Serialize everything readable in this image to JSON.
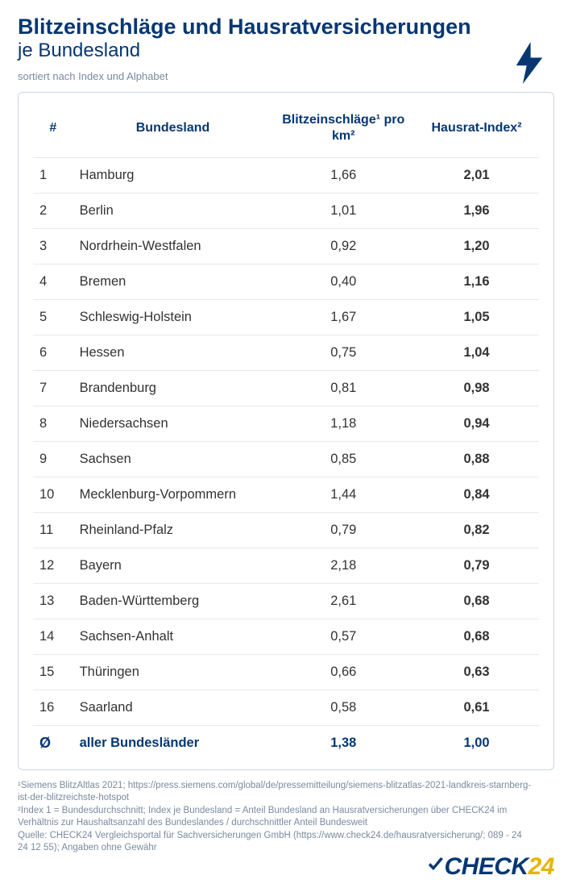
{
  "header": {
    "title": "Blitzeinschläge und Hausratversicherungen",
    "subtitle": "je Bundesland",
    "sort_note": "sortiert nach  Index und Alphabet"
  },
  "table": {
    "columns": {
      "rank": "#",
      "state": "Bundesland",
      "blitz": "Blitzeinschläge¹ pro km²",
      "index": "Hausrat-Index²"
    },
    "rows": [
      {
        "rank": "1",
        "state": "Hamburg",
        "blitz": "1,66",
        "index": "2,01"
      },
      {
        "rank": "2",
        "state": "Berlin",
        "blitz": "1,01",
        "index": "1,96"
      },
      {
        "rank": "3",
        "state": "Nordrhein-Westfalen",
        "blitz": "0,92",
        "index": "1,20"
      },
      {
        "rank": "4",
        "state": "Bremen",
        "blitz": "0,40",
        "index": "1,16"
      },
      {
        "rank": "5",
        "state": "Schleswig-Holstein",
        "blitz": "1,67",
        "index": "1,05"
      },
      {
        "rank": "6",
        "state": "Hessen",
        "blitz": "0,75",
        "index": "1,04"
      },
      {
        "rank": "7",
        "state": "Brandenburg",
        "blitz": "0,81",
        "index": "0,98"
      },
      {
        "rank": "8",
        "state": "Niedersachsen",
        "blitz": "1,18",
        "index": "0,94"
      },
      {
        "rank": "9",
        "state": "Sachsen",
        "blitz": "0,85",
        "index": "0,88"
      },
      {
        "rank": "10",
        "state": "Mecklenburg-Vorpommern",
        "blitz": "1,44",
        "index": "0,84"
      },
      {
        "rank": "11",
        "state": "Rheinland-Pfalz",
        "blitz": "0,79",
        "index": "0,82"
      },
      {
        "rank": "12",
        "state": "Bayern",
        "blitz": "2,18",
        "index": "0,79"
      },
      {
        "rank": "13",
        "state": "Baden-Württemberg",
        "blitz": "2,61",
        "index": "0,68"
      },
      {
        "rank": "14",
        "state": "Sachsen-Anhalt",
        "blitz": "0,57",
        "index": "0,68"
      },
      {
        "rank": "15",
        "state": "Thüringen",
        "blitz": "0,66",
        "index": "0,63"
      },
      {
        "rank": "16",
        "state": "Saarland",
        "blitz": "0,58",
        "index": "0,61"
      }
    ],
    "average": {
      "rank": "Ø",
      "state": "aller Bundesländer",
      "blitz": "1,38",
      "index": "1,00"
    }
  },
  "footnotes": {
    "line1": "¹Siemens BlitzAltlas 2021; https://press.siemens.com/global/de/pressemitteilung/siemens-blitzatlas-2021-landkreis-starnberg-ist-der-blitzreichste-hotspot",
    "line2": "²Index 1 = Bundesdurchschnitt; Index je Bundesland = Anteil Bundesland an Hausratversicherungen über CHECK24 im Verhältnis zur Haushaltsanzahl des Bundeslandes / durchschnittler Anteil Bundesweit",
    "line3": "Quelle: CHECK24 Vergleichsportal für Sachversicherungen GmbH (https://www.check24.de/hausratversicherung/; 089 - 24 24 12 55); Angaben ohne Gewähr"
  },
  "logo": {
    "part1": "CHECK",
    "part2": "24"
  },
  "colors": {
    "primary": "#063773",
    "text": "#333333",
    "muted": "#7a8aa0",
    "border": "#cfd6e0",
    "row_border": "#e6e9ef",
    "accent": "#e8b400",
    "background": "#ffffff"
  },
  "typography": {
    "title_fontsize": 27,
    "subtitle_fontsize": 24,
    "header_fontsize": 16,
    "cell_fontsize": 16.5,
    "footnote_fontsize": 11.5
  }
}
